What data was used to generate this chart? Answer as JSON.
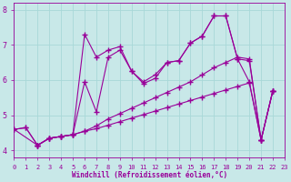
{
  "background_color": "#c8e8e8",
  "grid_color": "#a8d8d8",
  "line_color": "#990099",
  "xlabel": "Windchill (Refroidissement éolien,°C)",
  "xlim": [
    0,
    23
  ],
  "ylim": [
    3.8,
    8.2
  ],
  "yticks": [
    4,
    5,
    6,
    7,
    8
  ],
  "xticks": [
    0,
    1,
    2,
    3,
    4,
    5,
    6,
    7,
    8,
    9,
    10,
    11,
    12,
    13,
    14,
    15,
    16,
    17,
    18,
    19,
    20,
    21,
    22,
    23
  ],
  "lines": [
    {
      "x": [
        0,
        1,
        2,
        3,
        4,
        5,
        6,
        7,
        8,
        9,
        10,
        11,
        12,
        13,
        14,
        15,
        16,
        17,
        18,
        19,
        20,
        21,
        22
      ],
      "y": [
        4.6,
        4.65,
        4.15,
        4.35,
        4.4,
        4.45,
        7.3,
        6.65,
        6.85,
        6.95,
        6.25,
        5.9,
        6.05,
        6.5,
        6.55,
        7.05,
        7.25,
        7.82,
        7.82,
        6.6,
        6.55,
        4.3,
        5.7
      ]
    },
    {
      "x": [
        0,
        1,
        2,
        3,
        4,
        5,
        6,
        7,
        8,
        9,
        10,
        11,
        12,
        13,
        14,
        15,
        16,
        17,
        18,
        19,
        20,
        21,
        22
      ],
      "y": [
        4.6,
        4.65,
        4.15,
        4.35,
        4.4,
        4.45,
        5.95,
        5.1,
        6.65,
        6.85,
        6.25,
        5.95,
        6.15,
        6.5,
        6.55,
        7.05,
        7.25,
        7.82,
        7.82,
        6.6,
        5.95,
        4.3,
        5.7
      ]
    },
    {
      "x": [
        2,
        3,
        4,
        5,
        6,
        7,
        8,
        9,
        10,
        11,
        12,
        13,
        14,
        15,
        16,
        17,
        18,
        19,
        20,
        21,
        22
      ],
      "y": [
        4.15,
        4.35,
        4.4,
        4.45,
        4.55,
        4.7,
        4.9,
        5.05,
        5.2,
        5.35,
        5.5,
        5.65,
        5.8,
        5.95,
        6.15,
        6.35,
        6.5,
        6.65,
        6.6,
        4.3,
        5.7
      ]
    },
    {
      "x": [
        0,
        2,
        3,
        4,
        5,
        6,
        7,
        8,
        9,
        10,
        11,
        12,
        13,
        14,
        15,
        16,
        17,
        18,
        19,
        20,
        21,
        22
      ],
      "y": [
        4.6,
        4.15,
        4.35,
        4.4,
        4.45,
        4.55,
        4.62,
        4.72,
        4.82,
        4.92,
        5.02,
        5.12,
        5.22,
        5.32,
        5.42,
        5.52,
        5.62,
        5.72,
        5.82,
        5.92,
        4.3,
        5.7
      ]
    }
  ]
}
